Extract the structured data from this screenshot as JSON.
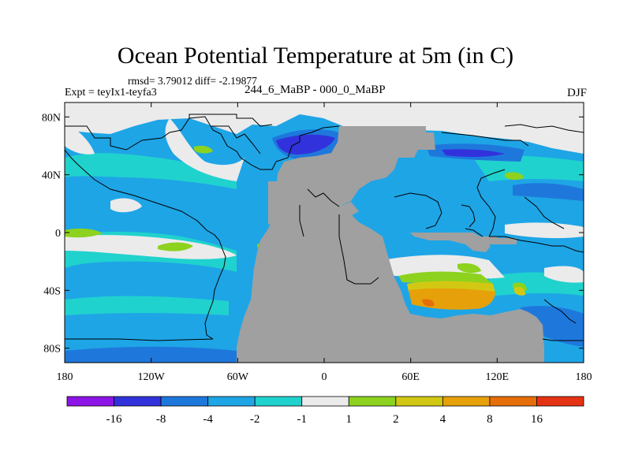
{
  "title": "Ocean Potential Temperature at 5m (in C)",
  "stats": "rmsd= 3.79012 diff= -2.19877",
  "experiment": "Expt = teyIx1-teyfa3",
  "case_label": "244_6_MaBP - 000_0_MaBP",
  "season": "DJF",
  "map": {
    "lon_range": [
      -180,
      180
    ],
    "lat_range": [
      -90,
      90
    ],
    "lon_ticks": [
      {
        "value": -180,
        "label": "180"
      },
      {
        "value": -120,
        "label": "120W"
      },
      {
        "value": -60,
        "label": "60W"
      },
      {
        "value": 0,
        "label": "0"
      },
      {
        "value": 60,
        "label": "60E"
      },
      {
        "value": 120,
        "label": "120E"
      },
      {
        "value": 180,
        "label": "180"
      }
    ],
    "lat_ticks": [
      {
        "value": 80,
        "label": "80N"
      },
      {
        "value": 40,
        "label": "40N"
      },
      {
        "value": 0,
        "label": "0"
      },
      {
        "value": -40,
        "label": "40S"
      },
      {
        "value": -80,
        "label": "80S"
      }
    ],
    "land_color": "#a0a0a0",
    "dominant_field_color": "#1ea5e6"
  },
  "colorbar": {
    "colors": [
      "#8c14e6",
      "#3232dc",
      "#1e78dc",
      "#1ea5e6",
      "#20d2cd",
      "#ebebeb",
      "#8cd21e",
      "#d2c814",
      "#e6a00a",
      "#e66e0a",
      "#e63214"
    ],
    "labels": [
      "-16",
      "-8",
      "-4",
      "-2",
      "-1",
      "1",
      "2",
      "4",
      "8",
      "16"
    ]
  }
}
